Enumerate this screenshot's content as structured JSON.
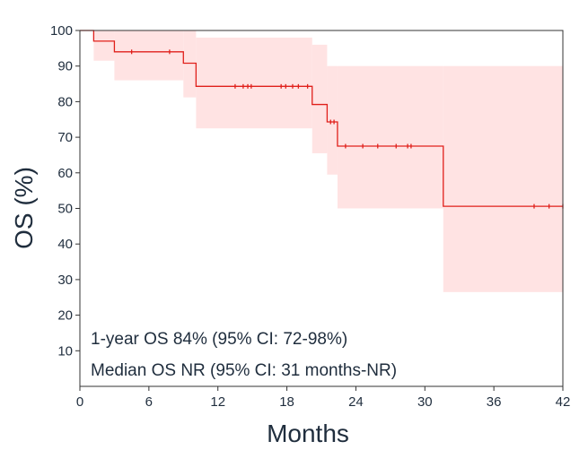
{
  "chart_data": {
    "type": "line",
    "xlabel": "Months",
    "ylabel": "OS (%)",
    "xlim": [
      0,
      42
    ],
    "ylim": [
      0,
      100
    ],
    "x_ticks": [
      0,
      6,
      12,
      18,
      24,
      30,
      36,
      42
    ],
    "y_ticks": [
      10,
      20,
      30,
      40,
      50,
      60,
      70,
      80,
      90,
      100
    ],
    "grid": false,
    "colors": {
      "survival_line": "#e0201b",
      "confidence_band": "#ffe3e3",
      "text": "#1f2d3d"
    },
    "survival_steps": [
      {
        "x": 0,
        "y": 100
      },
      {
        "x": 1.2,
        "y": 97
      },
      {
        "x": 3.0,
        "y": 94
      },
      {
        "x": 9.0,
        "y": 90.8
      },
      {
        "x": 10.1,
        "y": 84.3
      },
      {
        "x": 20.2,
        "y": 79.2
      },
      {
        "x": 21.5,
        "y": 74.3
      },
      {
        "x": 22.4,
        "y": 67.5
      },
      {
        "x": 31.6,
        "y": 50.6
      },
      {
        "x": 42,
        "y": 50.6
      }
    ],
    "confidence_interval_steps": [
      {
        "x": 0,
        "lower": 100,
        "upper": 100
      },
      {
        "x": 1.2,
        "lower": 91.5,
        "upper": 100
      },
      {
        "x": 3.0,
        "lower": 86.0,
        "upper": 100
      },
      {
        "x": 9.0,
        "lower": 81.2,
        "upper": 100
      },
      {
        "x": 10.1,
        "lower": 72.5,
        "upper": 98
      },
      {
        "x": 20.2,
        "lower": 65.5,
        "upper": 96
      },
      {
        "x": 21.5,
        "lower": 59.5,
        "upper": 90
      },
      {
        "x": 22.4,
        "lower": 50.0,
        "upper": 90
      },
      {
        "x": 31.6,
        "lower": 26.5,
        "upper": 90
      },
      {
        "x": 42,
        "lower": 26.5,
        "upper": 90
      }
    ],
    "censor_marks": [
      {
        "x": 4.5,
        "y": 94
      },
      {
        "x": 7.8,
        "y": 94
      },
      {
        "x": 13.5,
        "y": 84.3
      },
      {
        "x": 14.2,
        "y": 84.3
      },
      {
        "x": 14.6,
        "y": 84.3
      },
      {
        "x": 14.9,
        "y": 84.3
      },
      {
        "x": 17.5,
        "y": 84.3
      },
      {
        "x": 17.9,
        "y": 84.3
      },
      {
        "x": 18.5,
        "y": 84.3
      },
      {
        "x": 19.0,
        "y": 84.3
      },
      {
        "x": 19.8,
        "y": 84.3
      },
      {
        "x": 21.8,
        "y": 74.3
      },
      {
        "x": 22.1,
        "y": 74.3
      },
      {
        "x": 23.1,
        "y": 67.5
      },
      {
        "x": 24.6,
        "y": 67.5
      },
      {
        "x": 25.9,
        "y": 67.5
      },
      {
        "x": 27.5,
        "y": 67.5
      },
      {
        "x": 28.5,
        "y": 67.5
      },
      {
        "x": 28.8,
        "y": 67.5
      },
      {
        "x": 39.5,
        "y": 50.6
      },
      {
        "x": 40.8,
        "y": 50.6
      },
      {
        "x": 42,
        "y": 50.6
      }
    ],
    "annotations": [
      "1-year OS 84% (95% CI: 72-98%)",
      "Median OS NR (95% CI: 31 months-NR)"
    ]
  }
}
